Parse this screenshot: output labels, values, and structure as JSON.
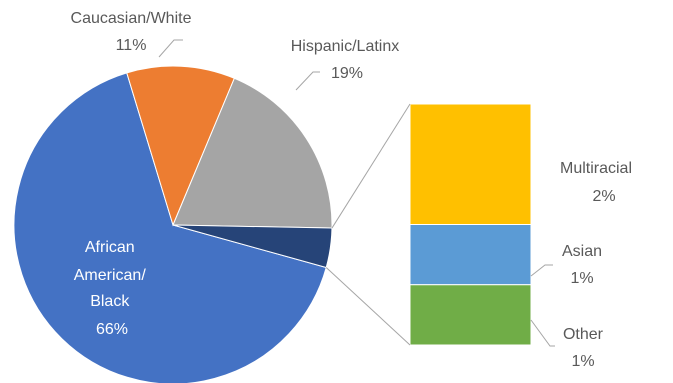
{
  "chart_data": {
    "type": "pie",
    "subtype": "bar-of-pie",
    "title": "",
    "pie": {
      "slices": [
        {
          "label": "African American/ Black",
          "value": 66,
          "display": "66%",
          "color": "#4472C4"
        },
        {
          "label": "Caucasian/White",
          "value": 11,
          "display": "11%",
          "color": "#ED7D31"
        },
        {
          "label": "Hispanic/Latinx",
          "value": 19,
          "display": "19%",
          "color": "#A5A5A5"
        },
        {
          "label": "",
          "value": 4,
          "display": "",
          "color": "#264478"
        }
      ]
    },
    "bar": {
      "segments": [
        {
          "label": "Multiracial",
          "value": 2,
          "display": "2%",
          "color": "#FFC000"
        },
        {
          "label": "Asian",
          "value": 1,
          "display": "1%",
          "color": "#5B9BD5"
        },
        {
          "label": "Other",
          "value": 1,
          "display": "1%",
          "color": "#70AD47"
        }
      ]
    },
    "legend": "none"
  }
}
